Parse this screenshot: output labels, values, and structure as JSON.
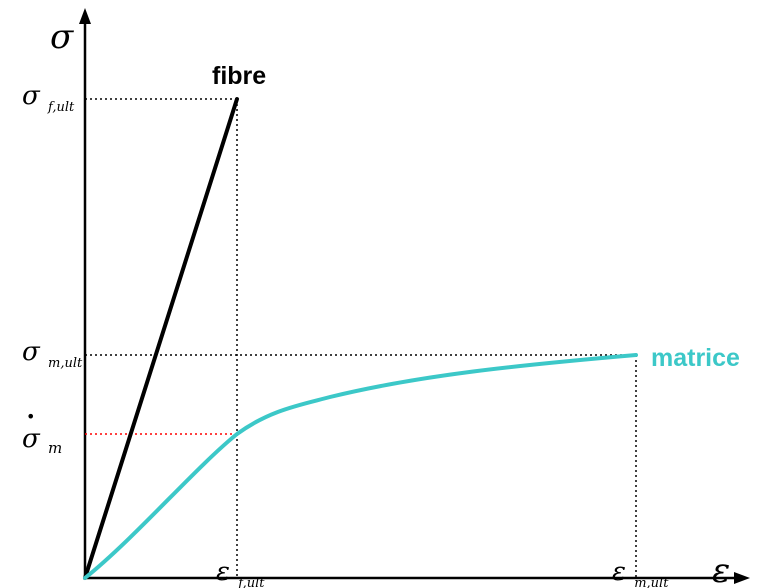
{
  "labels": {
    "y_axis_symbol": "σ",
    "x_axis_symbol": "ε",
    "sigma_f_ult_base": "σ",
    "sigma_f_ult_sub": "f,ult",
    "sigma_m_ult_base": "σ",
    "sigma_m_ult_sub": "m,ult",
    "sigma_m_star_base": "σ",
    "sigma_m_star_sub": "m",
    "sigma_m_star_mark": "•",
    "eps_f_ult_base": "ε",
    "eps_f_ult_sub": "f,ult",
    "eps_m_ult_base": "ε",
    "eps_m_ult_sub": "m,ult"
  },
  "curves": {
    "fibre": {
      "label": "fibre",
      "color": "#000000"
    },
    "matrice": {
      "label": "matrice",
      "color": "#3cc8c8"
    }
  },
  "guide_colors": {
    "neutral": "#000000",
    "highlight": "#ff0000"
  }
}
